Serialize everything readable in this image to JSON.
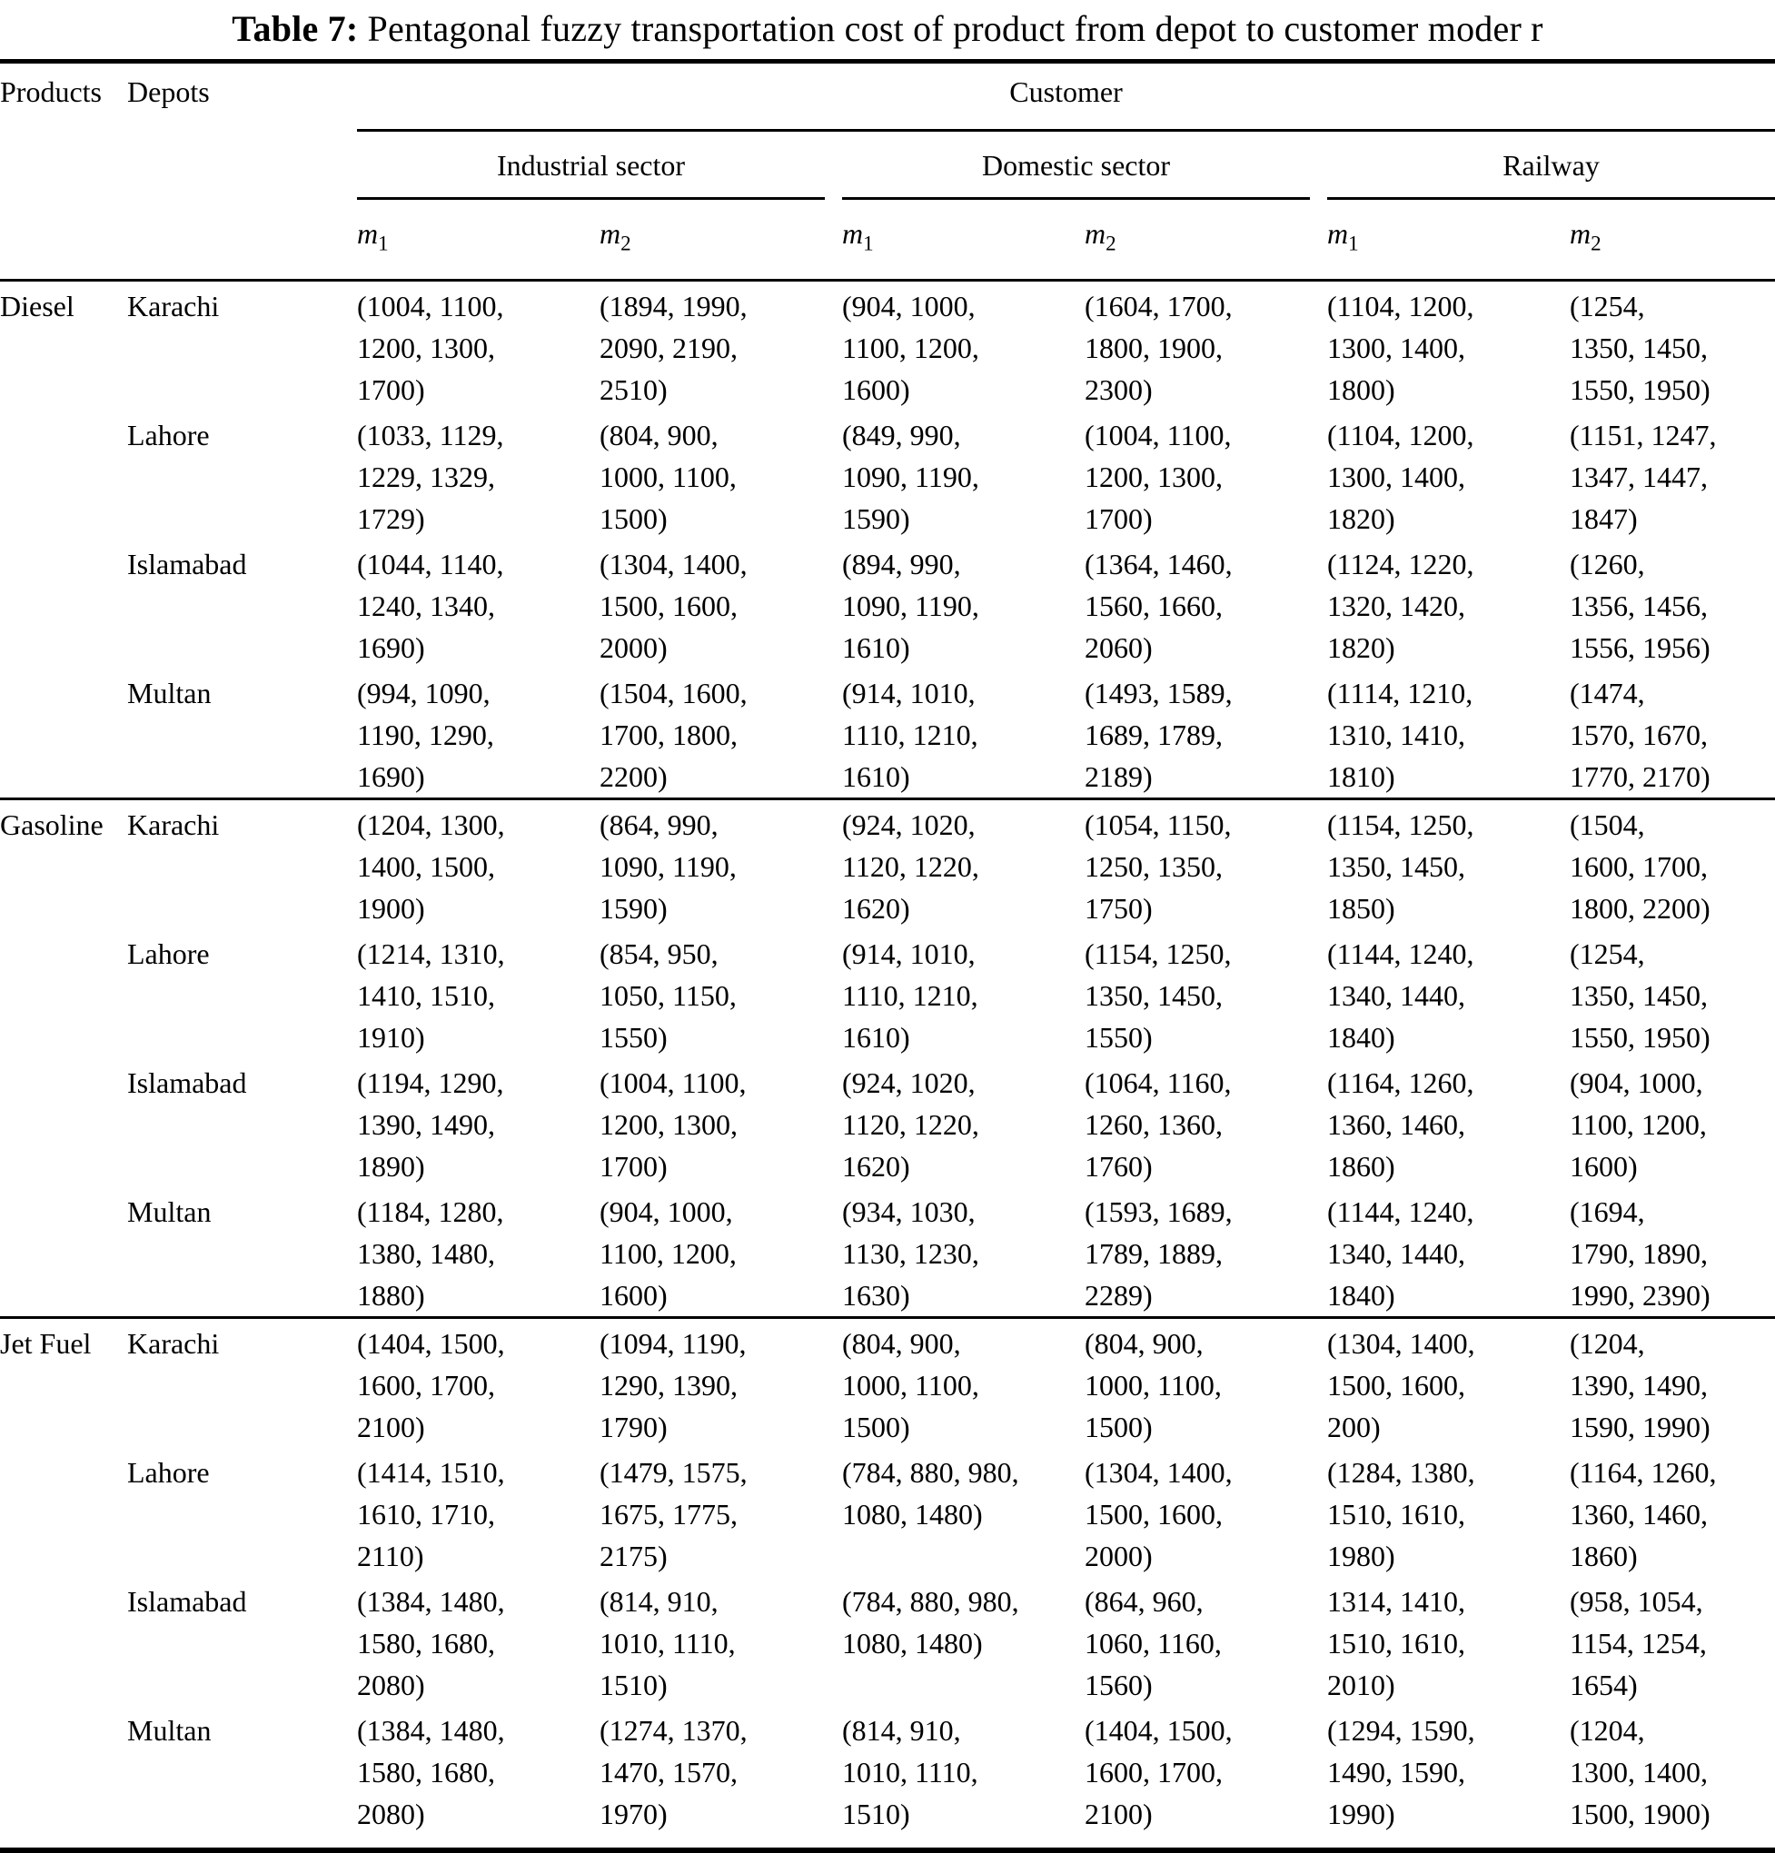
{
  "title": {
    "prefix": "Table 7:",
    "text": "Pentagonal fuzzy transportation cost of product from depot to customer moder r"
  },
  "header": {
    "products": "Products",
    "depots": "Depots",
    "customer": "Customer",
    "sectors": [
      "Industrial sector",
      "Domestic sector",
      "Railway"
    ],
    "modes": [
      {
        "base": "m",
        "sub": "1"
      },
      {
        "base": "m",
        "sub": "2"
      }
    ]
  },
  "sections": [
    {
      "product": "Diesel",
      "rows": [
        {
          "depot": "Karachi",
          "cells": [
            "(1004, 1100, 1200, 1300, 1700)",
            "(1894, 1990, 2090, 2190, 2510)",
            "(904, 1000, 1100, 1200, 1600)",
            "(1604, 1700, 1800, 1900, 2300)",
            "(1104, 1200, 1300, 1400, 1800)",
            "(1254, 1350, 1450, 1550, 1950)"
          ]
        },
        {
          "depot": "Lahore",
          "cells": [
            "(1033, 1129, 1229, 1329, 1729)",
            "(804, 900, 1000, 1100, 1500)",
            "(849, 990, 1090, 1190, 1590)",
            "(1004, 1100, 1200, 1300, 1700)",
            "(1104, 1200, 1300, 1400, 1820)",
            "(1151, 1247, 1347, 1447, 1847)"
          ]
        },
        {
          "depot": "Islamabad",
          "cells": [
            "(1044, 1140, 1240, 1340, 1690)",
            "(1304, 1400, 1500, 1600, 2000)",
            "(894, 990, 1090, 1190, 1610)",
            "(1364, 1460, 1560, 1660, 2060)",
            "(1124, 1220, 1320, 1420, 1820)",
            "(1260, 1356, 1456, 1556, 1956)"
          ]
        },
        {
          "depot": "Multan",
          "cells": [
            "(994, 1090, 1190, 1290, 1690)",
            "(1504, 1600, 1700, 1800, 2200)",
            "(914, 1010, 1110, 1210, 1610)",
            "(1493, 1589, 1689, 1789, 2189)",
            "(1114, 1210, 1310, 1410, 1810)",
            "(1474, 1570, 1670, 1770, 2170)"
          ]
        }
      ]
    },
    {
      "product": "Gasoline",
      "rows": [
        {
          "depot": "Karachi",
          "cells": [
            "(1204, 1300, 1400, 1500, 1900)",
            "(864, 990, 1090, 1190, 1590)",
            "(924, 1020, 1120, 1220, 1620)",
            "(1054, 1150, 1250, 1350, 1750)",
            "(1154, 1250, 1350, 1450, 1850)",
            "(1504, 1600, 1700, 1800, 2200)"
          ]
        },
        {
          "depot": "Lahore",
          "cells": [
            "(1214, 1310, 1410, 1510, 1910)",
            "(854, 950, 1050, 1150, 1550)",
            "(914, 1010, 1110, 1210, 1610)",
            "(1154, 1250, 1350, 1450, 1550)",
            "(1144, 1240, 1340, 1440, 1840)",
            "(1254, 1350, 1450, 1550, 1950)"
          ]
        },
        {
          "depot": "Islamabad",
          "cells": [
            "(1194, 1290, 1390, 1490, 1890)",
            "(1004, 1100, 1200, 1300, 1700)",
            "(924, 1020, 1120, 1220, 1620)",
            "(1064, 1160, 1260, 1360, 1760)",
            "(1164, 1260, 1360, 1460, 1860)",
            "(904, 1000, 1100, 1200, 1600)"
          ]
        },
        {
          "depot": "Multan",
          "cells": [
            "(1184, 1280, 1380, 1480, 1880)",
            "(904, 1000, 1100, 1200, 1600)",
            "(934, 1030, 1130, 1230, 1630)",
            "(1593, 1689, 1789, 1889, 2289)",
            "(1144, 1240, 1340, 1440, 1840)",
            "(1694, 1790, 1890, 1990, 2390)"
          ]
        }
      ]
    },
    {
      "product": "Jet Fuel",
      "rows": [
        {
          "depot": "Karachi",
          "cells": [
            "(1404, 1500, 1600, 1700, 2100)",
            "(1094, 1190, 1290, 1390, 1790)",
            "(804, 900, 1000, 1100, 1500)",
            "(804, 900, 1000, 1100, 1500)",
            "(1304, 1400, 1500, 1600, 200)",
            "(1204, 1390, 1490, 1590, 1990)"
          ]
        },
        {
          "depot": "Lahore",
          "cells": [
            "(1414, 1510, 1610, 1710, 2110)",
            "(1479, 1575, 1675, 1775, 2175)",
            "(784, 880, 980, 1080, 1480)",
            "(1304, 1400, 1500, 1600, 2000)",
            "(1284, 1380, 1510, 1610, 1980)",
            "(1164, 1260, 1360, 1460, 1860)"
          ]
        },
        {
          "depot": "Islamabad",
          "cells": [
            "(1384, 1480, 1580, 1680, 2080)",
            "(814, 910, 1010, 1110, 1510)",
            "(784, 880, 980, 1080, 1480)",
            "(864, 960, 1060, 1160, 1560)",
            "1314, 1410, 1510, 1610, 2010)",
            "(958, 1054, 1154, 1254, 1654)"
          ]
        },
        {
          "depot": "Multan",
          "cells": [
            "(1384, 1480, 1580, 1680, 2080)",
            "(1274, 1370, 1470, 1570, 1970)",
            "(814, 910, 1010, 1110, 1510)",
            "(1404, 1500, 1600, 1700, 2100)",
            "(1294, 1590, 1490, 1590, 1990)",
            "(1204, 1300, 1400, 1500, 1900)"
          ]
        }
      ]
    }
  ]
}
